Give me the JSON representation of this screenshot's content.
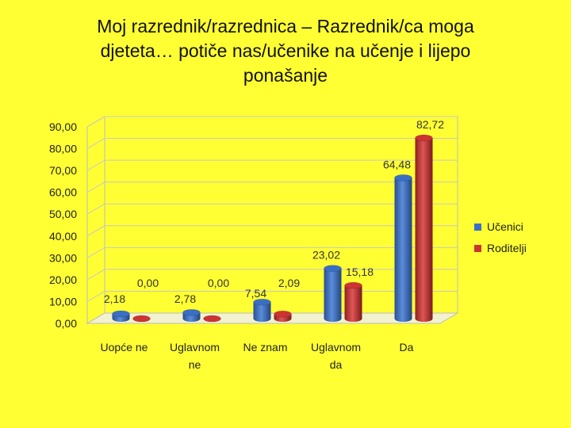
{
  "title_lines": [
    "Moj razrednik/razrednica – Razrednik/ca moga",
    "djeteta… potiče nas/učenike na učenje i lijepo",
    "ponašanje"
  ],
  "chart_data": {
    "type": "bar",
    "title": "Moj razrednik/razrednica – Razrednik/ca moga djeteta… potiče nas/učenike na učenje i lijepo ponašanje",
    "categories": [
      [
        "Uopće ne"
      ],
      [
        "Uglavnom",
        "ne"
      ],
      [
        "Ne znam"
      ],
      [
        "Uglavnom",
        "da"
      ],
      [
        "Da"
      ]
    ],
    "series": [
      {
        "name": "Učenici",
        "values": [
          2.18,
          2.78,
          7.54,
          23.02,
          64.48
        ],
        "labels": [
          "2,18",
          "2,78",
          "7,54",
          "23,02",
          "64,48"
        ],
        "color": "#3A6FC4"
      },
      {
        "name": "Roditelji",
        "values": [
          0.0,
          0.0,
          2.09,
          15.18,
          82.72
        ],
        "labels": [
          "0,00",
          "0,00",
          "2,09",
          "15,18",
          "82,72"
        ],
        "color": "#CC3333"
      }
    ],
    "yticks": [
      "0,00",
      "10,00",
      "20,00",
      "30,00",
      "40,00",
      "50,00",
      "60,00",
      "70,00",
      "80,00",
      "90,00"
    ],
    "ylim": [
      0,
      90
    ],
    "style": "3d-cylinder",
    "grid": true,
    "legend": "right"
  }
}
